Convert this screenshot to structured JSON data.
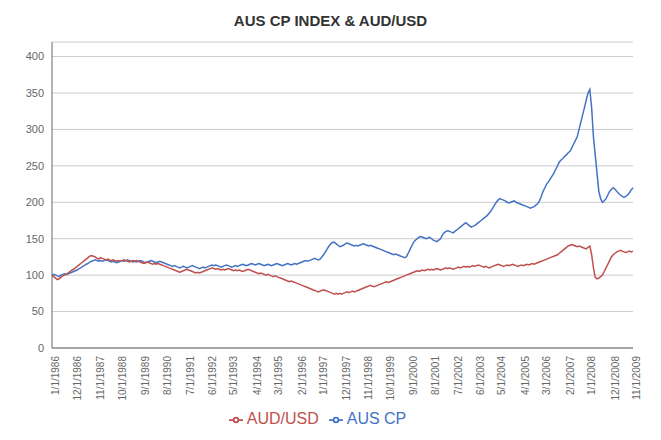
{
  "chart_data": {
    "type": "line",
    "title": "AUS CP INDEX & AUD/USD",
    "categories": [
      "1/1/1986",
      null,
      null,
      null,
      null,
      null,
      null,
      null,
      null,
      null,
      null,
      null,
      "12/1/1986",
      null,
      null,
      null,
      null,
      null,
      null,
      null,
      null,
      null,
      null,
      null,
      null,
      "11/1/1987",
      null,
      null,
      null,
      null,
      null,
      null,
      null,
      null,
      null,
      null,
      null,
      "10/1/1988",
      null,
      null,
      null,
      null,
      null,
      null,
      null,
      null,
      null,
      null,
      null,
      null,
      "9/1/1989",
      null,
      null,
      null,
      null,
      null,
      null,
      null,
      null,
      null,
      null,
      null,
      "8/1/1990",
      null,
      null,
      null,
      null,
      null,
      null,
      null,
      null,
      null,
      null,
      null,
      null,
      "7/1/1991",
      null,
      null,
      null,
      null,
      null,
      null,
      null,
      null,
      null,
      null,
      null,
      "6/1/1992",
      null,
      null,
      null,
      null,
      null,
      null,
      null,
      null,
      null,
      null,
      null,
      "5/1/1993",
      null,
      null,
      null,
      null,
      null,
      null,
      null,
      null,
      null,
      null,
      null,
      null,
      "4/1/1994",
      null,
      null,
      null,
      null,
      null,
      null,
      null,
      null,
      null,
      null,
      null,
      "3/1/1995",
      null,
      null,
      null,
      null,
      null,
      null,
      null,
      null,
      null,
      null,
      null,
      null,
      "2/1/1996",
      null,
      null,
      null,
      null,
      null,
      null,
      null,
      null,
      null,
      null,
      null,
      "1/1/1997",
      null,
      null,
      null,
      null,
      null,
      null,
      null,
      null,
      null,
      null,
      null,
      null,
      "12/1/1997",
      null,
      null,
      null,
      null,
      null,
      null,
      null,
      null,
      null,
      null,
      null,
      "11/1/1998",
      null,
      null,
      null,
      null,
      null,
      null,
      null,
      null,
      null,
      null,
      null,
      "10/1/1999",
      null,
      null,
      null,
      null,
      null,
      null,
      null,
      null,
      null,
      null,
      null,
      null,
      "9/1/2000",
      null,
      null,
      null,
      null,
      null,
      null,
      null,
      null,
      null,
      null,
      null,
      "8/1/2001",
      null,
      null,
      null,
      null,
      null,
      null,
      null,
      null,
      null,
      null,
      null,
      null,
      "7/1/2002",
      null,
      null,
      null,
      null,
      null,
      null,
      null,
      null,
      null,
      null,
      null,
      "6/1/2003",
      null,
      null,
      null,
      null,
      null,
      null,
      null,
      null,
      null,
      null,
      null,
      "5/1/2004",
      null,
      null,
      null,
      null,
      null,
      null,
      null,
      null,
      null,
      null,
      null,
      null,
      "4/1/2005",
      null,
      null,
      null,
      null,
      null,
      null,
      null,
      null,
      null,
      null,
      null,
      "3/1/2006",
      null,
      null,
      null,
      null,
      null,
      null,
      null,
      null,
      null,
      null,
      null,
      null,
      "2/1/2007",
      null,
      null,
      null,
      null,
      null,
      null,
      null,
      null,
      null,
      null,
      null,
      "1/1/2008",
      null,
      null,
      null,
      null,
      null,
      null,
      null,
      null,
      null,
      null,
      null,
      null,
      "12/1/2008",
      null,
      null,
      null,
      null,
      null,
      null,
      null,
      null,
      null,
      null,
      null,
      "11/1/2009"
    ],
    "series": [
      {
        "name": "AUS CP",
        "color": "#4472C4",
        "values": [
          100,
          101,
          100,
          99,
          98,
          100,
          101,
          102,
          101,
          102,
          103,
          104,
          105,
          106,
          107,
          109,
          110,
          112,
          113,
          115,
          116,
          118,
          119,
          120,
          121,
          120,
          119,
          120,
          119,
          120,
          121,
          120,
          119,
          118,
          119,
          118,
          117,
          118,
          119,
          120,
          119,
          120,
          121,
          120,
          119,
          118,
          119,
          118,
          119,
          120,
          119,
          118,
          117,
          118,
          119,
          120,
          119,
          118,
          117,
          118,
          119,
          118,
          117,
          116,
          115,
          114,
          113,
          112,
          113,
          112,
          111,
          110,
          111,
          112,
          111,
          110,
          111,
          112,
          113,
          112,
          111,
          110,
          109,
          110,
          111,
          110,
          111,
          112,
          113,
          114,
          113,
          114,
          113,
          112,
          111,
          112,
          113,
          114,
          113,
          112,
          111,
          112,
          113,
          112,
          113,
          114,
          115,
          114,
          113,
          114,
          115,
          116,
          115,
          114,
          115,
          116,
          115,
          114,
          113,
          114,
          115,
          114,
          113,
          114,
          115,
          116,
          115,
          114,
          113,
          114,
          115,
          116,
          115,
          114,
          115,
          116,
          115,
          116,
          117,
          118,
          119,
          120,
          119,
          120,
          121,
          122,
          123,
          122,
          121,
          122,
          125,
          128,
          132,
          136,
          140,
          143,
          145,
          145,
          143,
          141,
          139,
          140,
          141,
          143,
          144,
          143,
          142,
          141,
          140,
          141,
          140,
          141,
          142,
          143,
          142,
          141,
          140,
          141,
          140,
          139,
          138,
          137,
          136,
          135,
          134,
          133,
          132,
          131,
          130,
          129,
          128,
          129,
          128,
          127,
          126,
          125,
          124,
          125,
          130,
          135,
          140,
          145,
          148,
          150,
          152,
          153,
          152,
          151,
          150,
          151,
          152,
          150,
          148,
          147,
          146,
          148,
          150,
          155,
          158,
          160,
          161,
          160,
          159,
          158,
          160,
          162,
          164,
          166,
          168,
          170,
          172,
          170,
          168,
          166,
          167,
          168,
          170,
          172,
          174,
          176,
          178,
          180,
          182,
          185,
          188,
          192,
          196,
          200,
          203,
          205,
          204,
          203,
          202,
          200,
          199,
          200,
          201,
          202,
          200,
          199,
          198,
          197,
          196,
          195,
          194,
          193,
          192,
          193,
          194,
          196,
          198,
          202,
          208,
          215,
          220,
          225,
          228,
          232,
          236,
          240,
          245,
          250,
          255,
          258,
          260,
          263,
          265,
          268,
          270,
          275,
          280,
          285,
          290,
          300,
          310,
          320,
          330,
          340,
          350,
          355,
          330,
          290,
          265,
          240,
          215,
          205,
          200,
          202,
          205,
          210,
          215,
          218,
          220,
          218,
          215,
          212,
          210,
          208,
          207,
          208,
          210,
          213,
          217,
          220
        ]
      },
      {
        "name": "AUD/USD",
        "color": "#C0504D",
        "values": [
          100,
          98,
          96,
          94,
          95,
          97,
          99,
          100,
          101,
          103,
          105,
          107,
          108,
          110,
          112,
          114,
          116,
          118,
          120,
          122,
          124,
          126,
          127,
          126,
          125,
          123,
          122,
          124,
          123,
          122,
          121,
          122,
          121,
          120,
          121,
          120,
          119,
          120,
          119,
          120,
          121,
          120,
          119,
          118,
          119,
          120,
          119,
          120,
          119,
          118,
          117,
          116,
          117,
          118,
          117,
          116,
          115,
          116,
          115,
          116,
          115,
          114,
          113,
          112,
          111,
          110,
          109,
          108,
          107,
          106,
          105,
          104,
          105,
          106,
          107,
          108,
          107,
          106,
          105,
          104,
          103,
          104,
          103,
          104,
          105,
          106,
          107,
          108,
          109,
          110,
          109,
          108,
          109,
          108,
          107,
          108,
          107,
          108,
          109,
          108,
          107,
          106,
          107,
          106,
          107,
          106,
          105,
          106,
          107,
          108,
          107,
          106,
          105,
          104,
          103,
          102,
          103,
          102,
          101,
          100,
          101,
          100,
          99,
          98,
          99,
          98,
          97,
          96,
          95,
          94,
          93,
          92,
          91,
          92,
          91,
          90,
          89,
          88,
          87,
          86,
          85,
          84,
          83,
          82,
          81,
          80,
          79,
          78,
          77,
          78,
          79,
          80,
          79,
          78,
          77,
          76,
          75,
          74,
          75,
          74,
          75,
          74,
          75,
          76,
          77,
          76,
          77,
          78,
          77,
          78,
          79,
          80,
          81,
          82,
          83,
          84,
          85,
          86,
          85,
          84,
          85,
          86,
          87,
          88,
          89,
          90,
          91,
          90,
          91,
          92,
          93,
          94,
          95,
          96,
          97,
          98,
          99,
          100,
          101,
          102,
          103,
          104,
          105,
          106,
          105,
          106,
          107,
          106,
          107,
          108,
          107,
          108,
          107,
          108,
          109,
          108,
          107,
          108,
          109,
          110,
          109,
          110,
          109,
          108,
          109,
          110,
          111,
          110,
          111,
          112,
          111,
          112,
          111,
          112,
          113,
          112,
          113,
          114,
          113,
          112,
          111,
          112,
          111,
          110,
          111,
          112,
          113,
          114,
          115,
          114,
          113,
          112,
          113,
          114,
          113,
          114,
          115,
          114,
          113,
          112,
          113,
          114,
          113,
          114,
          115,
          114,
          115,
          116,
          115,
          116,
          117,
          118,
          119,
          120,
          121,
          122,
          123,
          124,
          125,
          126,
          127,
          128,
          130,
          132,
          134,
          136,
          138,
          140,
          141,
          142,
          141,
          140,
          139,
          140,
          139,
          138,
          137,
          136,
          138,
          140,
          128,
          110,
          97,
          95,
          96,
          98,
          100,
          105,
          110,
          115,
          120,
          125,
          128,
          130,
          132,
          133,
          134,
          133,
          132,
          131,
          132,
          133,
          132,
          133
        ]
      }
    ],
    "ylim": [
      0,
      420
    ],
    "yticks": [
      0,
      50,
      100,
      150,
      200,
      250,
      300,
      350,
      400
    ],
    "grid": true,
    "legend": "bottom"
  }
}
